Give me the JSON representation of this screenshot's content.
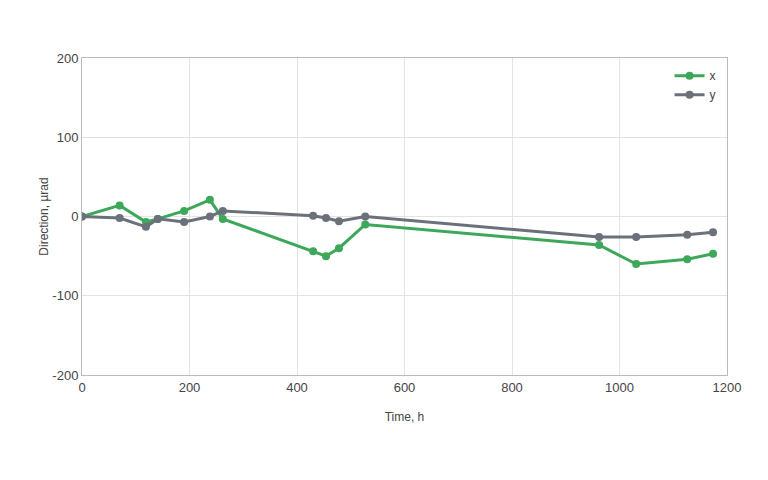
{
  "chart_data": {
    "type": "line",
    "x_label": "Time, h",
    "y_label": "Direction, µrad",
    "x": [
      0,
      70,
      119,
      141,
      190,
      238,
      262,
      430,
      454,
      478,
      527,
      962,
      1031,
      1126,
      1174
    ],
    "series": [
      {
        "name": "x",
        "color": "#3da85a",
        "marker": "circle",
        "line_style": "solid",
        "values": [
          0,
          14,
          -7,
          -3,
          7,
          21,
          -3,
          -44,
          -50,
          -40,
          -10,
          -36,
          -60,
          -54,
          -47
        ]
      },
      {
        "name": "y",
        "color": "#6b707a",
        "marker": "circle",
        "line_style": "solid",
        "values": [
          0,
          -2,
          -13,
          -3,
          -7,
          0,
          7,
          1,
          -2,
          -6,
          0,
          -26,
          -26,
          -23,
          -20
        ]
      }
    ],
    "xlim": [
      0,
      1200
    ],
    "xticks": [
      0,
      200,
      400,
      600,
      800,
      1000,
      1200
    ],
    "ylim": [
      -200,
      200
    ],
    "yticks": [
      -200,
      -100,
      0,
      100,
      200
    ],
    "grid": true,
    "legend": "top-right"
  }
}
